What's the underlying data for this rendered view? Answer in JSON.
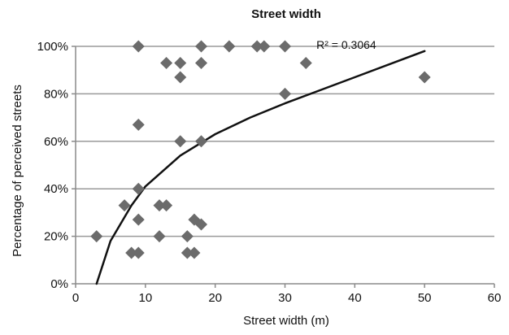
{
  "chart_data": {
    "type": "scatter",
    "title": "Street width",
    "xlabel": "Street width (m)",
    "ylabel": "Percentage of perceived streets",
    "xlim": [
      0,
      60
    ],
    "ylim": [
      0,
      100
    ],
    "x_ticks": [
      "0",
      "10",
      "20",
      "30",
      "40",
      "50",
      "60"
    ],
    "y_ticks": [
      "0%",
      "20%",
      "40%",
      "60%",
      "80%",
      "100%"
    ],
    "grid": "horizontal",
    "legend": "none",
    "marker_color": "#6b6b6b",
    "trendline": {
      "type": "logarithmic",
      "annotation": "R² = 0.3064",
      "color": "#111111",
      "points": [
        {
          "x": 3,
          "y": 0
        },
        {
          "x": 5,
          "y": 18
        },
        {
          "x": 8,
          "y": 33
        },
        {
          "x": 10,
          "y": 41
        },
        {
          "x": 15,
          "y": 54
        },
        {
          "x": 20,
          "y": 63
        },
        {
          "x": 25,
          "y": 70
        },
        {
          "x": 30,
          "y": 76
        },
        {
          "x": 40,
          "y": 87
        },
        {
          "x": 50,
          "y": 98
        }
      ]
    },
    "points": [
      {
        "x": 9,
        "y": 100
      },
      {
        "x": 18,
        "y": 100
      },
      {
        "x": 22,
        "y": 100
      },
      {
        "x": 26,
        "y": 100
      },
      {
        "x": 27,
        "y": 100
      },
      {
        "x": 30,
        "y": 100
      },
      {
        "x": 13,
        "y": 93
      },
      {
        "x": 15,
        "y": 93
      },
      {
        "x": 18,
        "y": 93
      },
      {
        "x": 33,
        "y": 93
      },
      {
        "x": 15,
        "y": 87
      },
      {
        "x": 50,
        "y": 87
      },
      {
        "x": 30,
        "y": 80
      },
      {
        "x": 9,
        "y": 67
      },
      {
        "x": 15,
        "y": 60
      },
      {
        "x": 18,
        "y": 60
      },
      {
        "x": 9,
        "y": 40
      },
      {
        "x": 7,
        "y": 33
      },
      {
        "x": 12,
        "y": 33
      },
      {
        "x": 13,
        "y": 33
      },
      {
        "x": 9,
        "y": 27
      },
      {
        "x": 17,
        "y": 27
      },
      {
        "x": 18,
        "y": 25
      },
      {
        "x": 3,
        "y": 20
      },
      {
        "x": 12,
        "y": 20
      },
      {
        "x": 16,
        "y": 20
      },
      {
        "x": 8,
        "y": 13
      },
      {
        "x": 9,
        "y": 13
      },
      {
        "x": 16,
        "y": 13
      },
      {
        "x": 17,
        "y": 13
      }
    ]
  }
}
